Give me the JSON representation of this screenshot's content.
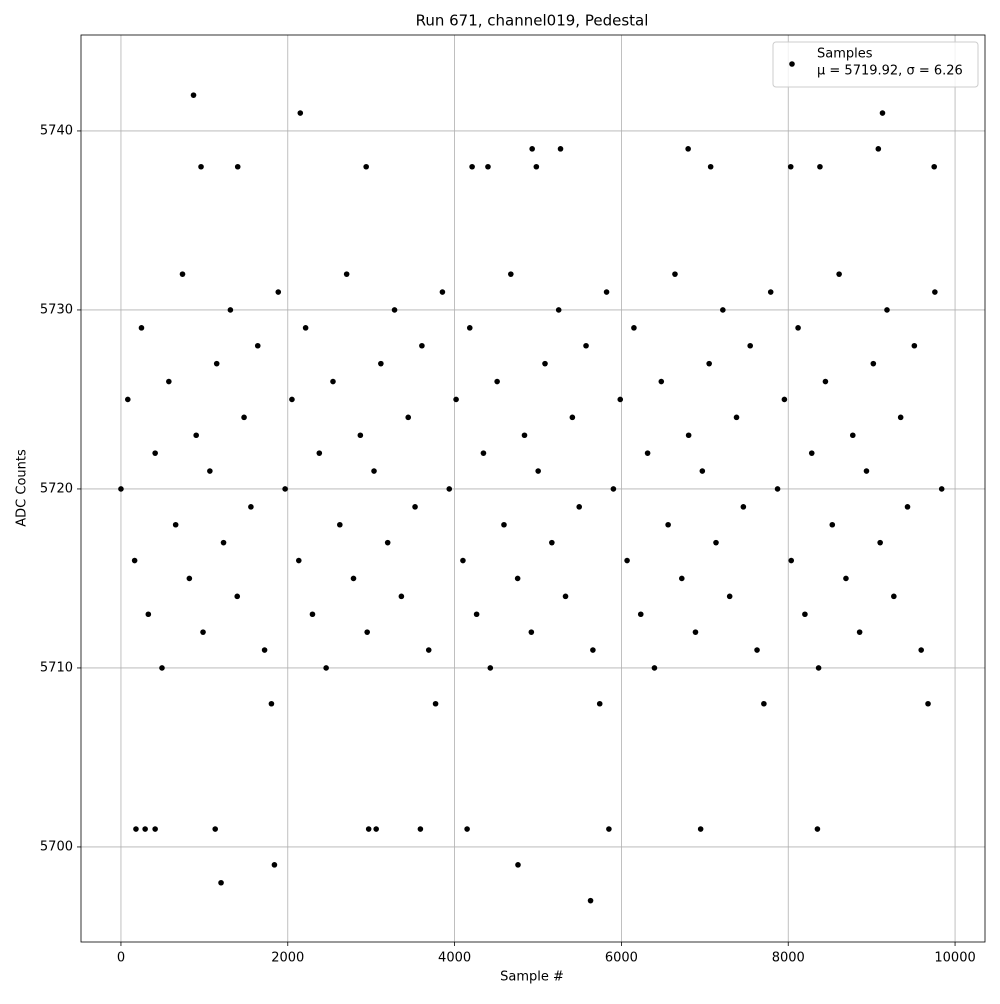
{
  "chart_data": {
    "type": "scatter",
    "title": "Run 671, channel019, Pedestal",
    "x_label": "Sample #",
    "y_label": "ADC Counts",
    "xlim": [
      -479,
      10359
    ],
    "ylim": [
      5694.69,
      5745.36
    ],
    "xticks": [
      0,
      2000,
      4000,
      6000,
      8000,
      10000
    ],
    "yticks": [
      5700,
      5710,
      5720,
      5730,
      5740
    ],
    "grid": true,
    "legend": "upper right",
    "legend_stats": "μ = 5719.92, σ = 6.26",
    "series": [
      {
        "name": "Samples",
        "color": "#000000",
        "x": [
          870,
          2150,
          9130,
          1200,
          1840,
          4760,
          5630,
          180,
          290,
          410,
          1130,
          2970,
          3060,
          3590,
          4150,
          5850,
          6950,
          8350,
          4930,
          5270,
          6800,
          9080,
          960,
          1400,
          2940,
          4210,
          4400,
          4980,
          7070,
          8030,
          8380,
          9750,
          0,
          82,
          164,
          246,
          328,
          410,
          492,
          574,
          656,
          738,
          820,
          902,
          984,
          1066,
          1148,
          1230,
          1312,
          1394,
          1476,
          1558,
          1640,
          1722,
          1804,
          1886,
          1968,
          2050,
          2132,
          2214,
          2296,
          2378,
          2460,
          2542,
          2624,
          2706,
          2788,
          2870,
          2952,
          3034,
          3116,
          3198,
          3280,
          3362,
          3444,
          3526,
          3608,
          3690,
          3772,
          3854,
          3936,
          4018,
          4100,
          4182,
          4264,
          4346,
          4428,
          4510,
          4592,
          4674,
          4756,
          4838,
          4920,
          5002,
          5084,
          5166,
          5248,
          5330,
          5412,
          5494,
          5576,
          5658,
          5740,
          5822,
          5904,
          5986,
          6068,
          6150,
          6232,
          6314,
          6396,
          6478,
          6560,
          6642,
          6724,
          6806,
          6888,
          6970,
          7052,
          7134,
          7216,
          7298,
          7380,
          7462,
          7544,
          7626,
          7708,
          7790,
          7872,
          7954,
          8036,
          8118,
          8200,
          8282,
          8364,
          8446,
          8528,
          8610,
          8692,
          8774,
          8856,
          8938,
          9020,
          9102,
          9184,
          9266,
          9348,
          9430,
          9512,
          9594,
          9676,
          9758,
          9840
        ],
        "values": [
          5742,
          5741,
          5741,
          5698,
          5699,
          5699,
          5697,
          5701,
          5701,
          5701,
          5701,
          5701,
          5701,
          5701,
          5701,
          5701,
          5701,
          5701,
          5739,
          5739,
          5739,
          5739,
          5738,
          5738,
          5738,
          5738,
          5738,
          5738,
          5738,
          5738,
          5738,
          5738,
          5720,
          5725,
          5716,
          5729,
          5713,
          5722,
          5710,
          5726,
          5718,
          5732,
          5715,
          5723,
          5712,
          5721,
          5727,
          5717,
          5730,
          5714,
          5724,
          5719,
          5728,
          5711,
          5708,
          5731,
          5720,
          5725,
          5716,
          5729,
          5713,
          5722,
          5710,
          5726,
          5718,
          5732,
          5715,
          5723,
          5712,
          5721,
          5727,
          5717,
          5730,
          5714,
          5724,
          5719,
          5728,
          5711,
          5708,
          5731,
          5720,
          5725,
          5716,
          5729,
          5713,
          5722,
          5710,
          5726,
          5718,
          5732,
          5715,
          5723,
          5712,
          5721,
          5727,
          5717,
          5730,
          5714,
          5724,
          5719,
          5728,
          5711,
          5708,
          5731,
          5720,
          5725,
          5716,
          5729,
          5713,
          5722,
          5710,
          5726,
          5718,
          5732,
          5715,
          5723,
          5712,
          5721,
          5727,
          5717,
          5730,
          5714,
          5724,
          5719,
          5728,
          5711,
          5708,
          5731,
          5720,
          5725,
          5716,
          5729,
          5713,
          5722,
          5710,
          5726,
          5718,
          5732,
          5715,
          5723,
          5712,
          5721,
          5727,
          5717,
          5730,
          5714,
          5724,
          5719,
          5728,
          5711,
          5708,
          5731,
          5720
        ]
      }
    ]
  }
}
